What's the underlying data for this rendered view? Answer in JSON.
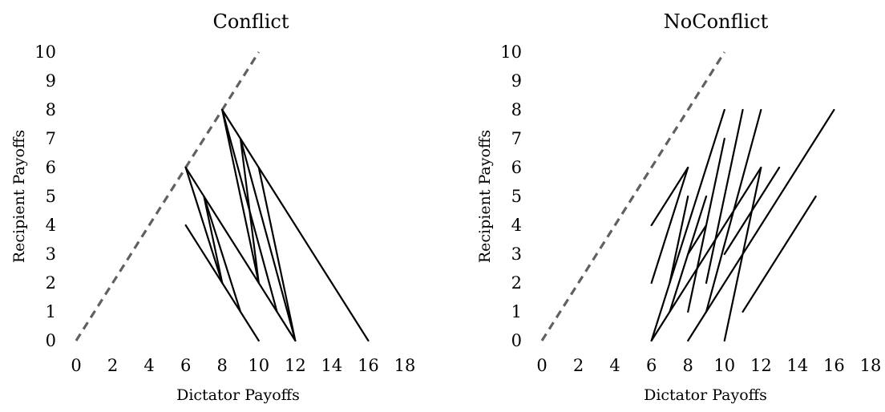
{
  "chart_data": [
    {
      "type": "line",
      "title": "Conflict",
      "xlabel": "Dictator Payoffs",
      "ylabel": "Recipient Payoffs",
      "xlim": [
        0,
        18
      ],
      "ylim": [
        0,
        10
      ],
      "xticks": [
        0,
        2,
        4,
        6,
        8,
        10,
        12,
        14,
        16,
        18
      ],
      "yticks": [
        0,
        1,
        2,
        3,
        4,
        5,
        6,
        7,
        8,
        9,
        10
      ],
      "grid": false,
      "reference_line": {
        "style": "dashed",
        "color": "#606060",
        "points": [
          [
            0,
            0
          ],
          [
            10,
            10
          ]
        ]
      },
      "segments": [
        [
          [
            6,
            4
          ],
          [
            10,
            0
          ]
        ],
        [
          [
            6,
            6
          ],
          [
            12,
            0
          ]
        ],
        [
          [
            8,
            8
          ],
          [
            16,
            0
          ]
        ],
        [
          [
            6,
            6
          ],
          [
            8,
            2
          ]
        ],
        [
          [
            7,
            5
          ],
          [
            9,
            1
          ]
        ],
        [
          [
            7,
            5
          ],
          [
            8,
            2
          ]
        ],
        [
          [
            8,
            8
          ],
          [
            10,
            2
          ]
        ],
        [
          [
            8,
            8
          ],
          [
            11,
            1
          ]
        ],
        [
          [
            9,
            7
          ],
          [
            12,
            0
          ]
        ],
        [
          [
            10,
            6
          ],
          [
            12,
            0
          ]
        ],
        [
          [
            9,
            7
          ],
          [
            10,
            2
          ]
        ]
      ]
    },
    {
      "type": "line",
      "title": "NoConflict",
      "xlabel": "Dictator Payoffs",
      "ylabel": "Recipient Payoffs",
      "xlim": [
        0,
        18
      ],
      "ylim": [
        0,
        10
      ],
      "xticks": [
        0,
        2,
        4,
        6,
        8,
        10,
        12,
        14,
        16,
        18
      ],
      "yticks": [
        0,
        1,
        2,
        3,
        4,
        5,
        6,
        7,
        8,
        9,
        10
      ],
      "grid": false,
      "reference_line": {
        "style": "dashed",
        "color": "#606060",
        "points": [
          [
            0,
            0
          ],
          [
            10,
            10
          ]
        ]
      },
      "segments": [
        [
          [
            6,
            4
          ],
          [
            8,
            6
          ]
        ],
        [
          [
            6,
            0
          ],
          [
            10,
            8
          ]
        ],
        [
          [
            6,
            0
          ],
          [
            12,
            6
          ]
        ],
        [
          [
            6,
            2
          ],
          [
            8,
            6
          ]
        ],
        [
          [
            7,
            2
          ],
          [
            8,
            5
          ]
        ],
        [
          [
            7,
            1
          ],
          [
            9,
            5
          ]
        ],
        [
          [
            8,
            1
          ],
          [
            10,
            7
          ]
        ],
        [
          [
            8,
            3
          ],
          [
            9,
            4
          ]
        ],
        [
          [
            8,
            0
          ],
          [
            16,
            8
          ]
        ],
        [
          [
            9,
            2
          ],
          [
            11,
            8
          ]
        ],
        [
          [
            9,
            1
          ],
          [
            12,
            8
          ]
        ],
        [
          [
            10,
            0
          ],
          [
            12,
            6
          ]
        ],
        [
          [
            10,
            3
          ],
          [
            13,
            6
          ]
        ],
        [
          [
            11,
            1
          ],
          [
            15,
            5
          ]
        ]
      ]
    }
  ]
}
